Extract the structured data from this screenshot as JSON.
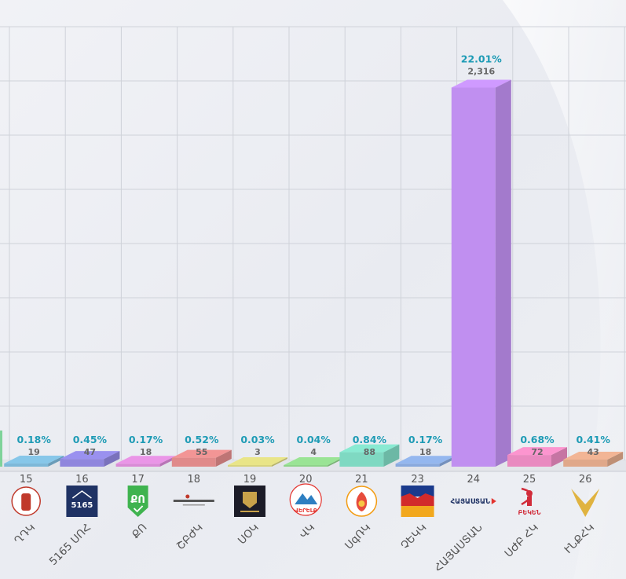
{
  "chart_data": {
    "type": "bar",
    "categories": [
      {
        "num": "",
        "name": "",
        "percent": "",
        "count": "",
        "value": 0,
        "color": "#7fd39a"
      },
      {
        "num": "15",
        "name": "ՂԴԿ",
        "percent": "0.18%",
        "count": "19",
        "value": 0.18,
        "color": "#7db8d8"
      },
      {
        "num": "16",
        "name": "5165 ՍՈՀ",
        "percent": "0.45%",
        "count": "47",
        "value": 0.45,
        "color": "#8f86dd"
      },
      {
        "num": "17",
        "name": "ՔՈ",
        "percent": "0.17%",
        "count": "18",
        "value": 0.17,
        "color": "#d98ad6"
      },
      {
        "num": "18",
        "name": "ՇԲԺԿ",
        "percent": "0.52%",
        "count": "55",
        "value": 0.52,
        "color": "#e08a8a"
      },
      {
        "num": "19",
        "name": "ՍՕԿ",
        "percent": "0.03%",
        "count": "3",
        "value": 0.03,
        "color": "#d8d47e"
      },
      {
        "num": "20",
        "name": "ՎԿ",
        "percent": "0.04%",
        "count": "4",
        "value": 0.04,
        "color": "#8fd38a"
      },
      {
        "num": "21",
        "name": "ՍգՌԿ",
        "percent": "0.84%",
        "count": "88",
        "value": 0.84,
        "color": "#7fd9c2"
      },
      {
        "num": "23",
        "name": "ՉԵԿԿ",
        "percent": "0.17%",
        "count": "18",
        "value": 0.17,
        "color": "#89a9dd"
      },
      {
        "num": "24",
        "name": "ՀԱՅԱՍՏԱՆ",
        "percent": "22.01%",
        "count": "2,316",
        "value": 22.01,
        "color": "#c08ff0"
      },
      {
        "num": "25",
        "name": "ՍԺԲ ՀԿ",
        "percent": "0.68%",
        "count": "72",
        "value": 0.68,
        "color": "#e98ac0"
      },
      {
        "num": "26",
        "name": "ՒՆՔՀԿ",
        "percent": "0.41%",
        "count": "43",
        "value": 0.41,
        "color": "#e0a88a"
      }
    ],
    "logo_text": {
      "16": "5165",
      "17": "ՔՈ",
      "20": "ՎԵՐԵԼՔ",
      "24": "ՀԱՅԱՍՏԱՆ",
      "25": "ԲԵԿԵՆ"
    },
    "ylim": [
      0,
      26
    ],
    "grid": true
  }
}
